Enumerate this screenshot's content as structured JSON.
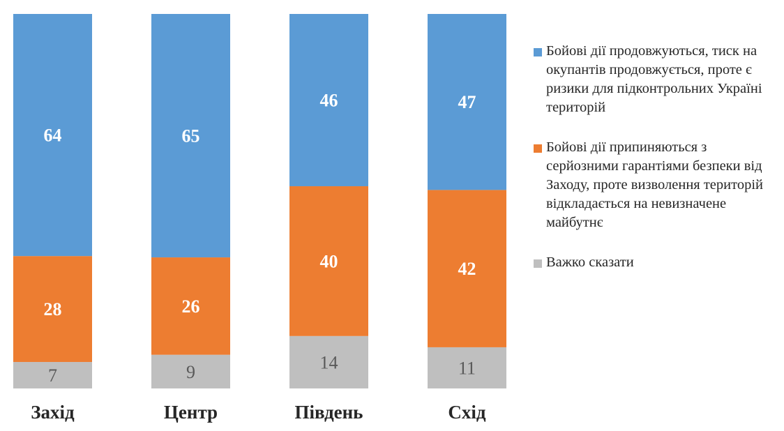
{
  "chart_data": {
    "type": "bar",
    "stacked": true,
    "percent": true,
    "categories": [
      "Захід",
      "Центр",
      "Південь",
      "Схід"
    ],
    "series": [
      {
        "name": "Бойові дії продовжуються, тиск на окупантів продовжується, проте є ризики для підконтрольних Україні територій",
        "color": "#5b9bd5",
        "label_color": "#ffffff",
        "label_bold": true,
        "values": [
          64,
          65,
          46,
          47
        ]
      },
      {
        "name": "Бойові дії припиняються з серйозними гарантіями безпеки від Заходу, проте визволення територій відкладається на невизначене майбутнє",
        "color": "#ed7d31",
        "label_color": "#ffffff",
        "label_bold": true,
        "values": [
          28,
          26,
          40,
          42
        ]
      },
      {
        "name": "Важко сказати",
        "color": "#bfbfbf",
        "label_color": "#595959",
        "label_bold": false,
        "values": [
          7,
          9,
          14,
          11
        ]
      }
    ],
    "legend_position": "right",
    "grid": false,
    "axes_visible": false
  }
}
